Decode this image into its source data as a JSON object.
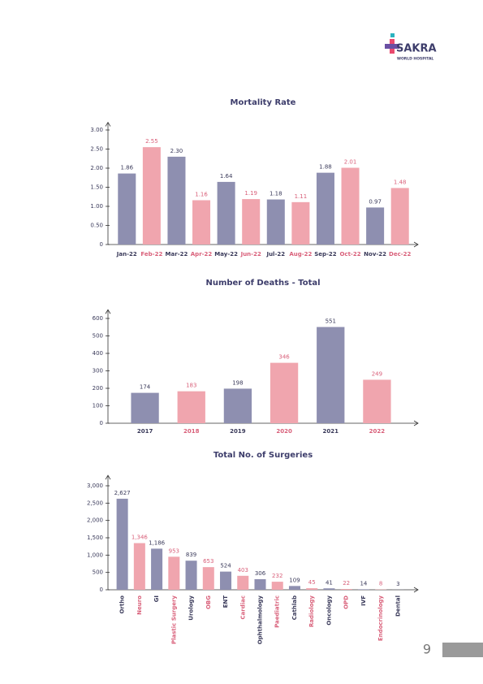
{
  "logo": {
    "name": "SAKRA",
    "subtitle": "WORLD HOSPITAL"
  },
  "page_number": "9",
  "chart_data": [
    {
      "type": "bar",
      "title": "Mortality Rate",
      "categories": [
        "Jan-22",
        "Feb-22",
        "Mar-22",
        "Apr-22",
        "May-22",
        "Jun-22",
        "Jul-22",
        "Aug-22",
        "Sep-22",
        "Oct-22",
        "Nov-22",
        "Dec-22"
      ],
      "values": [
        1.86,
        2.55,
        2.3,
        1.16,
        1.64,
        1.19,
        1.18,
        1.11,
        1.88,
        2.01,
        0.97,
        1.48
      ],
      "value_labels": [
        "1.86",
        "2.55",
        "2.30",
        "1.16",
        "1.64",
        "1.19",
        "1.18",
        "1.11",
        "1.88",
        "2.01",
        "0.97",
        "1.48"
      ],
      "colors": [
        "#8e8fb0",
        "#f0a5ae",
        "#8e8fb0",
        "#f0a5ae",
        "#8e8fb0",
        "#f0a5ae",
        "#8e8fb0",
        "#f0a5ae",
        "#8e8fb0",
        "#f0a5ae",
        "#8e8fb0",
        "#f0a5ae"
      ],
      "ylim": [
        0,
        3.2
      ],
      "yticks": [
        0,
        {
          "value": 0.5,
          "label": "0.50"
        },
        {
          "value": 1,
          "label": "1.00"
        },
        {
          "value": 1.5,
          "label": "1.50"
        },
        {
          "value": 2,
          "label": "2.00"
        },
        {
          "value": 2.5,
          "label": "2.50"
        },
        {
          "value": 3,
          "label": "3.00"
        }
      ]
    },
    {
      "type": "bar",
      "title": "Number of Deaths - Total",
      "categories": [
        "2017",
        "2018",
        "2019",
        "2020",
        "2021",
        "2022"
      ],
      "values": [
        174,
        183,
        198,
        346,
        551,
        249
      ],
      "colors": [
        "#8e8fb0",
        "#f0a5ae",
        "#8e8fb0",
        "#f0a5ae",
        "#8e8fb0",
        "#f0a5ae"
      ],
      "ylim": [
        0,
        650
      ],
      "yticks": [
        0,
        100,
        200,
        300,
        400,
        500,
        600
      ]
    },
    {
      "type": "bar",
      "title": "Total No. of Surgeries",
      "categories": [
        "Ortho",
        "Neuro",
        "GI",
        "Plastic Surgery",
        "Urology",
        "OBG",
        "ENT",
        "Cardiac",
        "Ophthalmology",
        "Paediatric",
        "Cathlab",
        "Radiology",
        "Oncology",
        "OPD",
        "IVF",
        "Endocrinology",
        "Dental"
      ],
      "values": [
        2627,
        1346,
        1186,
        953,
        839,
        653,
        524,
        403,
        306,
        232,
        109,
        45,
        41,
        22,
        14,
        8,
        3
      ],
      "value_labels": [
        "2,627",
        "1,346",
        "1,186",
        "953",
        "839",
        "653",
        "524",
        "403",
        "306",
        "232",
        "109",
        "45",
        "41",
        "22",
        "14",
        "8",
        "3"
      ],
      "colors": [
        "#8e8fb0",
        "#f0a5ae",
        "#8e8fb0",
        "#f0a5ae",
        "#8e8fb0",
        "#f0a5ae",
        "#8e8fb0",
        "#f0a5ae",
        "#8e8fb0",
        "#f0a5ae",
        "#8e8fb0",
        "#f0a5ae",
        "#8e8fb0",
        "#f0a5ae",
        "#8e8fb0",
        "#f0a5ae",
        "#8e8fb0"
      ],
      "ylim": [
        0,
        3300
      ],
      "yticks": [
        0,
        500,
        {
          "value": 1000,
          "label": "1,000"
        },
        {
          "value": 1500,
          "label": "1,500"
        },
        {
          "value": 2000,
          "label": "2,000"
        },
        {
          "value": 2500,
          "label": "2,500"
        },
        {
          "value": 3000,
          "label": "3,000"
        }
      ]
    }
  ]
}
